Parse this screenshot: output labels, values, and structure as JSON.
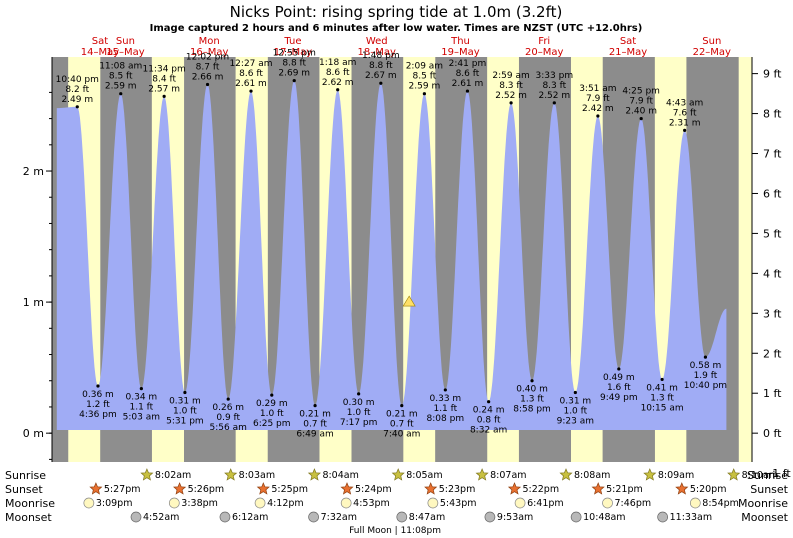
{
  "header": {
    "title": "Nicks Point: rising  spring tide at 1.0m (3.2ft)",
    "subtitle": "Image captured 2 hours and 6 minutes after low water. Times are NZST (UTC +12.0hrs)"
  },
  "chart_data": {
    "type": "area",
    "x_unit": "days from start of Sat 14-May",
    "left_axis": {
      "unit": "m",
      "ticks": [
        {
          "value": 0,
          "label": "0 m"
        },
        {
          "value": 1,
          "label": "1 m"
        },
        {
          "value": 2,
          "label": "2 m"
        }
      ],
      "ylim": [
        -0.22,
        2.87
      ]
    },
    "right_axis": {
      "unit": "ft",
      "ticks": [
        "−1 ft",
        "0 ft",
        "1 ft",
        "2 ft",
        "3 ft",
        "4 ft",
        "5 ft",
        "6 ft",
        "7 ft",
        "8 ft",
        "9 ft"
      ]
    },
    "xlim": [
      0,
      8.5
    ],
    "days": [
      {
        "dow": "Sat",
        "date": "14–May"
      },
      {
        "dow": "Sun",
        "date": "15–May"
      },
      {
        "dow": "Mon",
        "date": "16–May"
      },
      {
        "dow": "Tue",
        "date": "17–May"
      },
      {
        "dow": "Wed",
        "date": "18–May"
      },
      {
        "dow": "Thu",
        "date": "19–May"
      },
      {
        "dow": "Fri",
        "date": "20–May"
      },
      {
        "dow": "Sat",
        "date": "21–May"
      },
      {
        "dow": "Sun",
        "date": "22–May"
      }
    ],
    "series_color": "#a0acf5",
    "high_tides": [
      {
        "x": 0.445,
        "time": "10:40 pm",
        "ft": "8.2 ft",
        "m": "2.49 m",
        "value": 2.49
      },
      {
        "x": 0.964,
        "time": "11:08 am",
        "ft": "8.5 ft",
        "m": "2.59 m",
        "value": 2.59
      },
      {
        "x": 1.482,
        "time": "11:34 pm",
        "ft": "8.4 ft",
        "m": "2.57 m",
        "value": 2.57
      },
      {
        "x": 2.0,
        "time": "12:02 pm",
        "ft": "8.7 ft",
        "m": "2.66 m",
        "value": 2.66
      },
      {
        "x": 2.519,
        "time": "12:27 am",
        "ft": "8.6 ft",
        "m": "2.61 m",
        "value": 2.61
      },
      {
        "x": 3.035,
        "time": "12:55 pm",
        "ft": "8.8 ft",
        "m": "2.69 m",
        "value": 2.69
      },
      {
        "x": 3.554,
        "time": "1:18 am",
        "ft": "8.6 ft",
        "m": "2.62 m",
        "value": 2.62
      },
      {
        "x": 4.069,
        "time": "1:48 pm",
        "ft": "8.8 ft",
        "m": "2.67 m",
        "value": 2.67
      },
      {
        "x": 4.589,
        "time": "2:09 am",
        "ft": "8.5 ft",
        "m": "2.59 m",
        "value": 2.59
      },
      {
        "x": 5.103,
        "time": "2:41 pm",
        "ft": "8.6 ft",
        "m": "2.61 m",
        "value": 2.61
      },
      {
        "x": 5.624,
        "time": "2:59 am",
        "ft": "8.3 ft",
        "m": "2.52 m",
        "value": 2.52
      },
      {
        "x": 6.14,
        "time": "3:33 pm",
        "ft": "8.3 ft",
        "m": "2.52 m",
        "value": 2.52
      },
      {
        "x": 6.66,
        "time": "3:51 am",
        "ft": "7.9 ft",
        "m": "2.42 m",
        "value": 2.42
      },
      {
        "x": 7.177,
        "time": "4:25 pm",
        "ft": "7.9 ft",
        "m": "2.40 m",
        "value": 2.4
      },
      {
        "x": 7.696,
        "time": "4:43 am",
        "ft": "7.6 ft",
        "m": "2.31 m",
        "value": 2.31
      }
    ],
    "low_tides": [
      {
        "x": 0.692,
        "time": "4:36 pm",
        "ft": "1.2 ft",
        "m": "0.36 m",
        "value": 0.36
      },
      {
        "x": 1.21,
        "time": "5:03 am",
        "ft": "1.1 ft",
        "m": "0.34 m",
        "value": 0.34
      },
      {
        "x": 1.73,
        "time": "5:31 pm",
        "ft": "1.0 ft",
        "m": "0.31 m",
        "value": 0.31
      },
      {
        "x": 2.247,
        "time": "5:56 am",
        "ft": "0.9 ft",
        "m": "0.26 m",
        "value": 0.26
      },
      {
        "x": 2.767,
        "time": "6:25 pm",
        "ft": "1.0 ft",
        "m": "0.29 m",
        "value": 0.29
      },
      {
        "x": 3.284,
        "time": "6:49 am",
        "ft": "0.7 ft",
        "m": "0.21 m",
        "value": 0.21
      },
      {
        "x": 3.804,
        "time": "7:17 pm",
        "ft": "1.0 ft",
        "m": "0.30 m",
        "value": 0.3
      },
      {
        "x": 4.319,
        "time": "7:40 am",
        "ft": "0.7 ft",
        "m": "0.21 m",
        "value": 0.21
      },
      {
        "x": 4.839,
        "time": "8:08 pm",
        "ft": "1.1 ft",
        "m": "0.33 m",
        "value": 0.33
      },
      {
        "x": 5.356,
        "time": "8:32 am",
        "ft": "0.8 ft",
        "m": "0.24 m",
        "value": 0.24
      },
      {
        "x": 5.874,
        "time": "8:58 pm",
        "ft": "1.3 ft",
        "m": "0.40 m",
        "value": 0.4
      },
      {
        "x": 6.391,
        "time": "9:23 am",
        "ft": "1.0 ft",
        "m": "0.31 m",
        "value": 0.31
      },
      {
        "x": 6.91,
        "time": "9:49 pm",
        "ft": "1.6 ft",
        "m": "0.49 m",
        "value": 0.49
      },
      {
        "x": 7.427,
        "time": "10:15 am",
        "ft": "1.3 ft",
        "m": "0.41 m",
        "value": 0.41
      },
      {
        "x": 7.944,
        "time": "10:40 pm",
        "ft": "1.9 ft",
        "m": "0.58 m",
        "value": 0.58
      }
    ],
    "current": {
      "x": 4.407,
      "value": 1.0
    },
    "night_bands": [
      [
        -0.03,
        0.336
      ],
      [
        0.72,
        1.335
      ],
      [
        1.72,
        2.335
      ],
      [
        2.72,
        3.336
      ],
      [
        3.719,
        4.336
      ],
      [
        4.719,
        5.338
      ],
      [
        5.718,
        6.339
      ],
      [
        6.718,
        7.34
      ],
      [
        7.717,
        8.341
      ]
    ],
    "colors": {
      "day": "#ffffc8",
      "night": "#8c8c8c",
      "tide": "#a0acf5",
      "current_marker": "#ffe066",
      "day_label": "#d00000"
    }
  },
  "rows": {
    "labels": {
      "sunrise": "Sunrise",
      "sunset": "Sunset",
      "moonrise": "Moonrise",
      "moonset": "Moonset"
    },
    "sunrise": [
      {
        "x": 1.336,
        "time": "8:02am"
      },
      {
        "x": 2.336,
        "time": "8:03am"
      },
      {
        "x": 3.336,
        "time": "8:04am"
      },
      {
        "x": 4.336,
        "time": "8:05am"
      },
      {
        "x": 5.338,
        "time": "8:07am"
      },
      {
        "x": 6.339,
        "time": "8:08am"
      },
      {
        "x": 7.34,
        "time": "8:09am"
      },
      {
        "x": 8.341,
        "time": "8:10am"
      }
    ],
    "sunset": [
      {
        "x": 0.727,
        "time": "5:27pm"
      },
      {
        "x": 1.726,
        "time": "5:26pm"
      },
      {
        "x": 2.726,
        "time": "5:25pm"
      },
      {
        "x": 3.725,
        "time": "5:24pm"
      },
      {
        "x": 4.724,
        "time": "5:23pm"
      },
      {
        "x": 5.724,
        "time": "5:22pm"
      },
      {
        "x": 6.723,
        "time": "5:21pm"
      },
      {
        "x": 7.722,
        "time": "5:20pm"
      }
    ],
    "moonrise": [
      {
        "x": 0.631,
        "time": "3:09pm"
      },
      {
        "x": 1.651,
        "time": "3:38pm"
      },
      {
        "x": 2.675,
        "time": "4:12pm"
      },
      {
        "x": 3.703,
        "time": "4:53pm"
      },
      {
        "x": 4.738,
        "time": "5:43pm"
      },
      {
        "x": 5.779,
        "time": "6:41pm"
      },
      {
        "x": 6.823,
        "time": "7:46pm"
      },
      {
        "x": 7.871,
        "time": "8:54pm"
      }
    ],
    "moonset": [
      {
        "x": 1.194,
        "time": "4:52am"
      },
      {
        "x": 2.256,
        "time": "6:12am"
      },
      {
        "x": 3.314,
        "time": "7:32am"
      },
      {
        "x": 4.367,
        "time": "8:47am"
      },
      {
        "x": 5.419,
        "time": "9:53am"
      },
      {
        "x": 6.448,
        "time": "10:48am"
      },
      {
        "x": 7.481,
        "time": "11:33am"
      }
    ],
    "full_moon": {
      "x": 4.0,
      "text": "Full Moon | 11:08pm"
    }
  }
}
